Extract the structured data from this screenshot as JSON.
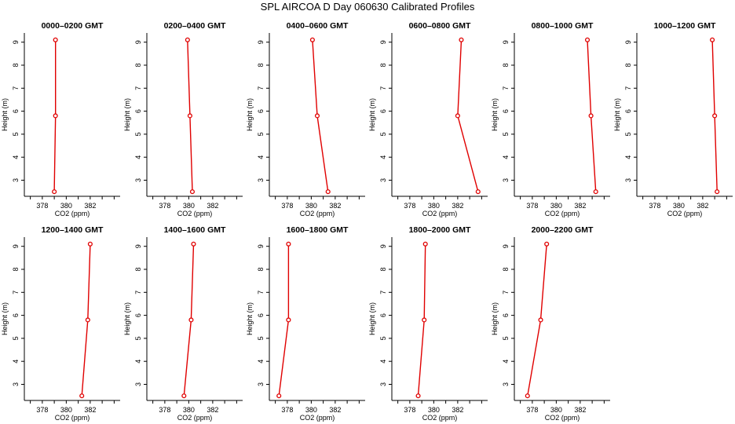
{
  "figure": {
    "title": "SPL AIRCOA D  Day 060630  Calibrated Profiles"
  },
  "style": {
    "series_color": "#e00000",
    "axis_color": "#000000"
  },
  "chart_data": [
    {
      "type": "line",
      "title": "0000–0200 GMT",
      "xlabel": "CO2 (ppm)",
      "ylabel": "Height (m)",
      "xlim": [
        376.5,
        384.5
      ],
      "ylim": [
        2.3,
        9.4
      ],
      "xticks": [
        "378",
        "380",
        "382"
      ],
      "yticks": [
        "3",
        "4",
        "5",
        "6",
        "7",
        "8",
        "9"
      ],
      "points": [
        {
          "x": 379.0,
          "y": 2.5
        },
        {
          "x": 379.1,
          "y": 5.8
        },
        {
          "x": 379.1,
          "y": 9.1
        }
      ]
    },
    {
      "type": "line",
      "title": "0200–0400 GMT",
      "xlabel": "CO2 (ppm)",
      "ylabel": "Height (m)",
      "xlim": [
        376.5,
        384.5
      ],
      "ylim": [
        2.3,
        9.4
      ],
      "xticks": [
        "378",
        "380",
        "382"
      ],
      "yticks": [
        "3",
        "4",
        "5",
        "6",
        "7",
        "8",
        "9"
      ],
      "points": [
        {
          "x": 380.3,
          "y": 2.5
        },
        {
          "x": 380.1,
          "y": 5.8
        },
        {
          "x": 379.9,
          "y": 9.1
        }
      ]
    },
    {
      "type": "line",
      "title": "0400–0600 GMT",
      "xlabel": "CO2 (ppm)",
      "ylabel": "Height (m)",
      "xlim": [
        376.5,
        384.5
      ],
      "ylim": [
        2.3,
        9.4
      ],
      "xticks": [
        "378",
        "380",
        "382"
      ],
      "yticks": [
        "3",
        "4",
        "5",
        "6",
        "7",
        "8",
        "9"
      ],
      "points": [
        {
          "x": 381.4,
          "y": 2.5
        },
        {
          "x": 380.5,
          "y": 5.8
        },
        {
          "x": 380.1,
          "y": 9.1
        }
      ]
    },
    {
      "type": "line",
      "title": "0600–0800 GMT",
      "xlabel": "CO2 (ppm)",
      "ylabel": "Height (m)",
      "xlim": [
        376.5,
        384.5
      ],
      "ylim": [
        2.3,
        9.4
      ],
      "xticks": [
        "378",
        "380",
        "382"
      ],
      "yticks": [
        "3",
        "4",
        "5",
        "6",
        "7",
        "8",
        "9"
      ],
      "points": [
        {
          "x": 383.7,
          "y": 2.5
        },
        {
          "x": 382.0,
          "y": 5.8
        },
        {
          "x": 382.3,
          "y": 9.1
        }
      ]
    },
    {
      "type": "line",
      "title": "0800–1000 GMT",
      "xlabel": "CO2 (ppm)",
      "ylabel": "Height (m)",
      "xlim": [
        376.5,
        384.5
      ],
      "ylim": [
        2.3,
        9.4
      ],
      "xticks": [
        "378",
        "380",
        "382"
      ],
      "yticks": [
        "3",
        "4",
        "5",
        "6",
        "7",
        "8",
        "9"
      ],
      "points": [
        {
          "x": 383.3,
          "y": 2.5
        },
        {
          "x": 382.9,
          "y": 5.8
        },
        {
          "x": 382.6,
          "y": 9.1
        }
      ]
    },
    {
      "type": "line",
      "title": "1000–1200 GMT",
      "xlabel": "CO2 (ppm)",
      "ylabel": "Height (m)",
      "xlim": [
        376.5,
        384.5
      ],
      "ylim": [
        2.3,
        9.4
      ],
      "xticks": [
        "378",
        "380",
        "382"
      ],
      "yticks": [
        "3",
        "4",
        "5",
        "6",
        "7",
        "8",
        "9"
      ],
      "points": [
        {
          "x": 383.2,
          "y": 2.5
        },
        {
          "x": 383.0,
          "y": 5.8
        },
        {
          "x": 382.8,
          "y": 9.1
        }
      ]
    },
    {
      "type": "line",
      "title": "1200–1400 GMT",
      "xlabel": "CO2 (ppm)",
      "ylabel": "Height (m)",
      "xlim": [
        376.5,
        384.5
      ],
      "ylim": [
        2.3,
        9.4
      ],
      "xticks": [
        "378",
        "380",
        "382"
      ],
      "yticks": [
        "3",
        "4",
        "5",
        "6",
        "7",
        "8",
        "9"
      ],
      "points": [
        {
          "x": 381.3,
          "y": 2.5
        },
        {
          "x": 381.8,
          "y": 5.8
        },
        {
          "x": 382.0,
          "y": 9.1
        }
      ]
    },
    {
      "type": "line",
      "title": "1400–1600 GMT",
      "xlabel": "CO2 (ppm)",
      "ylabel": "Height (m)",
      "xlim": [
        376.5,
        384.5
      ],
      "ylim": [
        2.3,
        9.4
      ],
      "xticks": [
        "378",
        "380",
        "382"
      ],
      "yticks": [
        "3",
        "4",
        "5",
        "6",
        "7",
        "8",
        "9"
      ],
      "points": [
        {
          "x": 379.6,
          "y": 2.5
        },
        {
          "x": 380.2,
          "y": 5.8
        },
        {
          "x": 380.4,
          "y": 9.1
        }
      ]
    },
    {
      "type": "line",
      "title": "1600–1800 GMT",
      "xlabel": "CO2 (ppm)",
      "ylabel": "Height (m)",
      "xlim": [
        376.5,
        384.5
      ],
      "ylim": [
        2.3,
        9.4
      ],
      "xticks": [
        "378",
        "380",
        "382"
      ],
      "yticks": [
        "3",
        "4",
        "5",
        "6",
        "7",
        "8",
        "9"
      ],
      "points": [
        {
          "x": 377.3,
          "y": 2.5
        },
        {
          "x": 378.1,
          "y": 5.8
        },
        {
          "x": 378.1,
          "y": 9.1
        }
      ]
    },
    {
      "type": "line",
      "title": "1800–2000 GMT",
      "xlabel": "CO2 (ppm)",
      "ylabel": "Height (m)",
      "xlim": [
        376.5,
        384.5
      ],
      "ylim": [
        2.3,
        9.4
      ],
      "xticks": [
        "378",
        "380",
        "382"
      ],
      "yticks": [
        "3",
        "4",
        "5",
        "6",
        "7",
        "8",
        "9"
      ],
      "points": [
        {
          "x": 378.7,
          "y": 2.5
        },
        {
          "x": 379.2,
          "y": 5.8
        },
        {
          "x": 379.3,
          "y": 9.1
        }
      ]
    },
    {
      "type": "line",
      "title": "2000–2200 GMT",
      "xlabel": "CO2 (ppm)",
      "ylabel": "Height (m)",
      "xlim": [
        376.5,
        384.5
      ],
      "ylim": [
        2.3,
        9.4
      ],
      "xticks": [
        "378",
        "380",
        "382"
      ],
      "yticks": [
        "3",
        "4",
        "5",
        "6",
        "7",
        "8",
        "9"
      ],
      "points": [
        {
          "x": 377.6,
          "y": 2.5
        },
        {
          "x": 378.7,
          "y": 5.8
        },
        {
          "x": 379.2,
          "y": 9.1
        }
      ]
    }
  ]
}
